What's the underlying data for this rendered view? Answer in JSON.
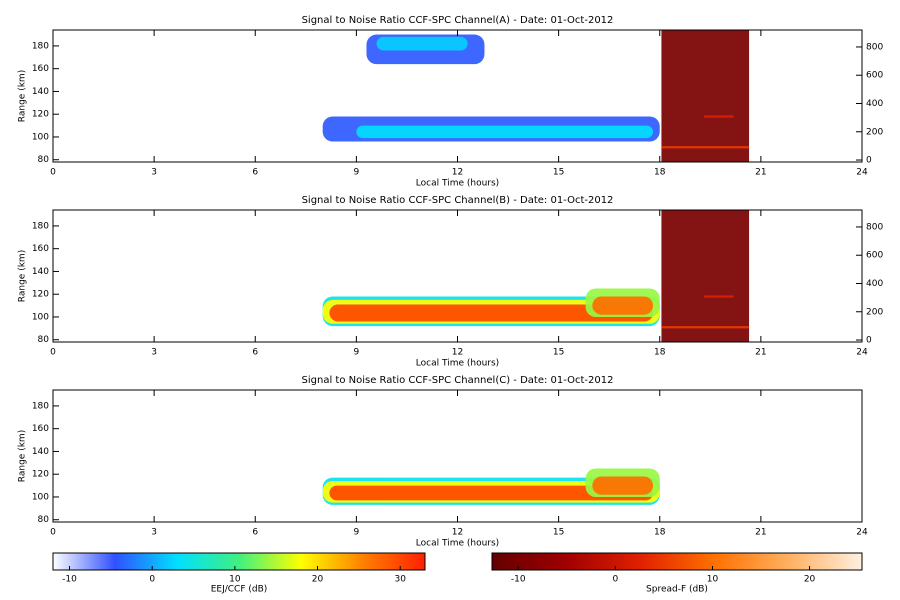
{
  "chart_data": [
    {
      "type": "heatmap",
      "title": "Signal to Noise Ratio CCF-SPC Channel(A) - Date: 01-Oct-2012",
      "xlabel": "Local Time (hours)",
      "ylabel": "Range (km)",
      "xlim": [
        0,
        24
      ],
      "xticks": [
        0,
        3,
        6,
        9,
        12,
        15,
        18,
        21,
        24
      ],
      "ylim": [
        78,
        194
      ],
      "yticks": [
        80,
        100,
        120,
        140,
        160,
        180
      ],
      "y2lim": [
        -14,
        920
      ],
      "y2ticks": [
        0,
        200,
        400,
        600,
        800
      ],
      "echoes": [
        {
          "x": [
            9.3,
            12.8
          ],
          "range": [
            164,
            190
          ],
          "snr": -4
        },
        {
          "x": [
            9.6,
            12.3
          ],
          "range": [
            176,
            188
          ],
          "snr": 2
        },
        {
          "x": [
            8,
            18
          ],
          "range": [
            96,
            118
          ],
          "snr": -4
        },
        {
          "x": [
            9,
            17.8
          ],
          "range": [
            99,
            110
          ],
          "snr": 3
        }
      ],
      "spread_f": [
        {
          "x": [
            18.05,
            20.65
          ],
          "range": [
            78,
            194
          ],
          "snr": -10
        },
        {
          "x": [
            18.05,
            20.65
          ],
          "range": [
            90,
            92
          ],
          "snr": 5
        },
        {
          "x": [
            19.3,
            20.2
          ],
          "range": [
            117,
            119
          ],
          "snr": 2
        }
      ]
    },
    {
      "type": "heatmap",
      "title": "Signal to Noise Ratio CCF-SPC Channel(B) - Date: 01-Oct-2012",
      "xlabel": "Local Time (hours)",
      "ylabel": "Range (km)",
      "xlim": [
        0,
        24
      ],
      "xticks": [
        0,
        3,
        6,
        9,
        12,
        15,
        18,
        21,
        24
      ],
      "ylim": [
        78,
        194
      ],
      "yticks": [
        80,
        100,
        120,
        140,
        160,
        180
      ],
      "y2lim": [
        -14,
        920
      ],
      "y2ticks": [
        0,
        200,
        400,
        600,
        800
      ],
      "echoes": [
        {
          "x": [
            8,
            18
          ],
          "range": [
            92,
            118
          ],
          "snr": 4
        },
        {
          "x": [
            8,
            18
          ],
          "range": [
            94,
            115
          ],
          "snr": 18
        },
        {
          "x": [
            8.2,
            17.8
          ],
          "range": [
            96,
            111
          ],
          "snr": 30
        },
        {
          "x": [
            15.8,
            18
          ],
          "range": [
            100,
            125
          ],
          "snr": 14
        },
        {
          "x": [
            16,
            17.8
          ],
          "range": [
            102,
            118
          ],
          "snr": 27
        }
      ],
      "spread_f": [
        {
          "x": [
            18.05,
            20.65
          ],
          "range": [
            78,
            194
          ],
          "snr": -10
        },
        {
          "x": [
            18.05,
            20.65
          ],
          "range": [
            90,
            92
          ],
          "snr": 5
        },
        {
          "x": [
            19.3,
            20.2
          ],
          "range": [
            117,
            119
          ],
          "snr": 2
        }
      ]
    },
    {
      "type": "heatmap",
      "title": "Signal to Noise Ratio CCF-SPC Channel(C) - Date: 01-Oct-2012",
      "xlabel": "Local Time (hours)",
      "ylabel": "Range (km)",
      "xlim": [
        0,
        24
      ],
      "xticks": [
        0,
        3,
        6,
        9,
        12,
        15,
        18,
        21,
        24
      ],
      "ylim": [
        78,
        194
      ],
      "yticks": [
        80,
        100,
        120,
        140,
        160,
        180
      ],
      "echoes": [
        {
          "x": [
            8,
            18
          ],
          "range": [
            93,
            117
          ],
          "snr": 4
        },
        {
          "x": [
            8,
            18
          ],
          "range": [
            95,
            114
          ],
          "snr": 18
        },
        {
          "x": [
            8.2,
            17.8
          ],
          "range": [
            97,
            110
          ],
          "snr": 30
        },
        {
          "x": [
            15.8,
            18
          ],
          "range": [
            100,
            125
          ],
          "snr": 14
        },
        {
          "x": [
            16,
            17.8
          ],
          "range": [
            102,
            118
          ],
          "snr": 27
        }
      ],
      "spread_f": []
    }
  ],
  "colorbars": [
    {
      "label": "EEJ/CCF (dB)",
      "lim": [
        -12,
        33
      ],
      "ticks": [
        -10,
        0,
        10,
        20,
        30
      ],
      "colors": [
        "#ffffff",
        "#3050ff",
        "#00e0ff",
        "#40f080",
        "#ffff00",
        "#ff8000",
        "#ff2000"
      ]
    },
    {
      "label": "Spread-F (dB)",
      "lim": [
        -12.7,
        25.4
      ],
      "ticks": [
        -10,
        0,
        10,
        20
      ],
      "colors": [
        "#640000",
        "#a00000",
        "#e02000",
        "#ff7000",
        "#ffb060",
        "#fff0e0"
      ]
    }
  ]
}
